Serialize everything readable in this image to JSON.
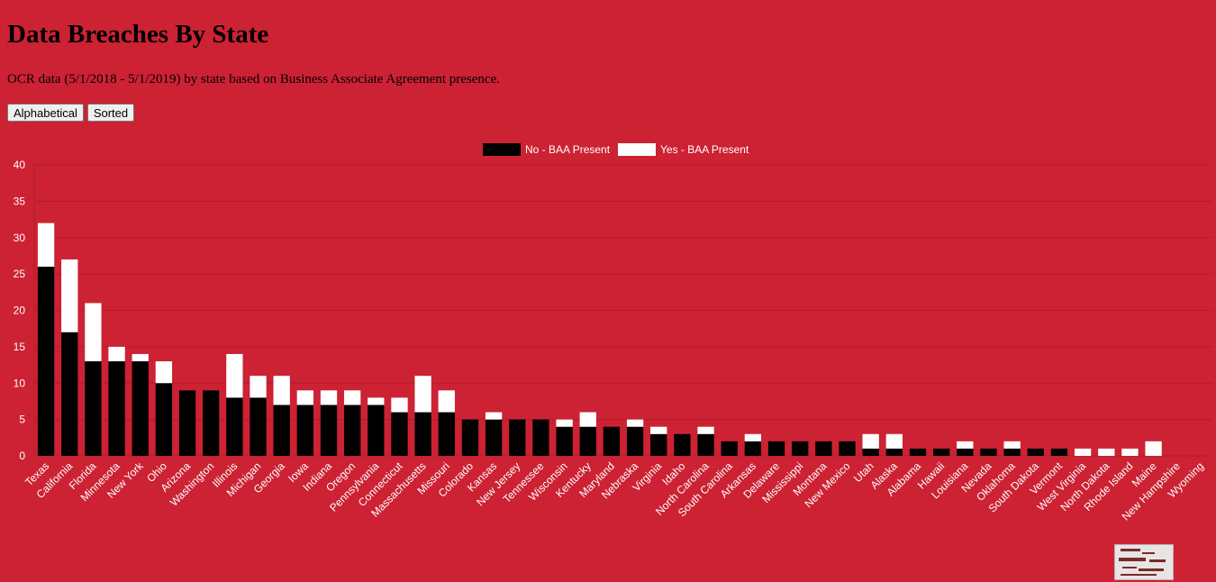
{
  "page": {
    "title": "Data Breaches By State",
    "subtitle": "OCR data (5/1/2018 - 5/1/2019) by state based on Business Associate Agreement presence.",
    "buttons": {
      "alphabetical": "Alphabetical",
      "sorted": "Sorted"
    }
  },
  "colors": {
    "background": "#cc2233",
    "gridline": "#b01d2c",
    "no_series": "#000000",
    "yes_series": "#ffffff"
  },
  "chart_data": {
    "type": "bar",
    "stacked": true,
    "categories": [
      "Texas",
      "California",
      "Florida",
      "Minnesota",
      "New York",
      "Ohio",
      "Arizona",
      "Washington",
      "Illinois",
      "Michigan",
      "Georgia",
      "Iowa",
      "Indiana",
      "Oregon",
      "Pennsylvania",
      "Connecticut",
      "Massachusetts",
      "Missouri",
      "Colorado",
      "Kansas",
      "New Jersey",
      "Tennessee",
      "Wisconsin",
      "Kentucky",
      "Maryland",
      "Nebraska",
      "Virginia",
      "Idaho",
      "North Carolina",
      "South Carolina",
      "Arkansas",
      "Delaware",
      "Mississippi",
      "Montana",
      "New Mexico",
      "Utah",
      "Alaska",
      "Alabama",
      "Hawaii",
      "Louisiana",
      "Nevada",
      "Oklahoma",
      "South Dakota",
      "Vermont",
      "West Virginia",
      "North Dakota",
      "Rhode Island",
      "Maine",
      "New Hampshire",
      "Wyoming"
    ],
    "series": [
      {
        "name": "No - BAA Present",
        "color": "#000000",
        "values": [
          26,
          17,
          13,
          13,
          13,
          10,
          9,
          9,
          8,
          8,
          7,
          7,
          7,
          7,
          7,
          6,
          6,
          6,
          5,
          5,
          5,
          5,
          4,
          4,
          4,
          4,
          3,
          3,
          3,
          2,
          2,
          2,
          2,
          2,
          2,
          1,
          1,
          1,
          1,
          1,
          1,
          1,
          1,
          1,
          0,
          0,
          0,
          0,
          0,
          0
        ]
      },
      {
        "name": "Yes - BAA Present",
        "color": "#ffffff",
        "values": [
          6,
          10,
          8,
          2,
          1,
          3,
          0,
          0,
          6,
          3,
          4,
          2,
          2,
          2,
          1,
          2,
          5,
          3,
          0,
          1,
          0,
          0,
          1,
          2,
          0,
          1,
          1,
          0,
          1,
          0,
          1,
          0,
          0,
          0,
          0,
          2,
          2,
          0,
          0,
          1,
          0,
          1,
          0,
          0,
          1,
          1,
          1,
          2,
          0,
          0
        ]
      }
    ],
    "yticks": [
      "0",
      "5",
      "10",
      "15",
      "20",
      "25",
      "30",
      "35",
      "40"
    ],
    "ylim": [
      0,
      40
    ],
    "grid": true,
    "legend_position": "top-center"
  }
}
